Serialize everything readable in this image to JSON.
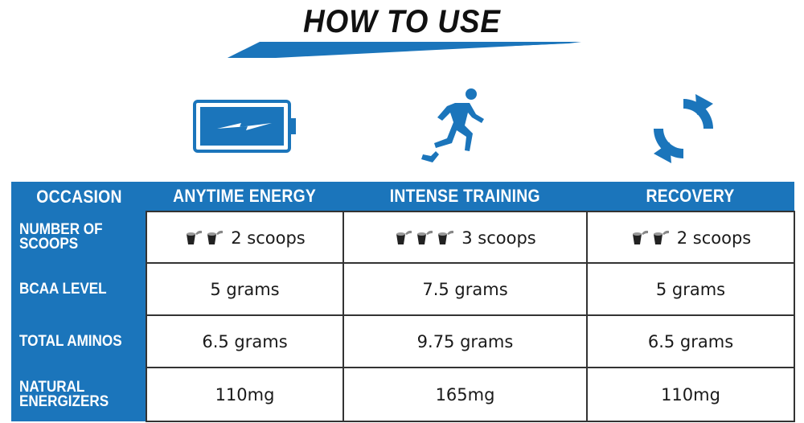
{
  "header": {
    "title": "HOW TO USE"
  },
  "icons": {
    "battery": "battery-charging-icon",
    "runner": "running-person-icon",
    "cycle": "recovery-cycle-icon",
    "scoop": "scoop-icon"
  },
  "colors": {
    "brand_blue": "#1b75bb",
    "text_dark": "#111111"
  },
  "table": {
    "headers": [
      "OCCASION",
      "ANYTIME ENERGY",
      "INTENSE TRAINING",
      "RECOVERY"
    ],
    "rows": [
      {
        "label_line1": "NUMBER OF",
        "label_line2": "SCOOPS",
        "values": [
          "2 scoops",
          "3 scoops",
          "2 scoops"
        ],
        "scoop_counts": [
          2,
          3,
          2
        ]
      },
      {
        "label_line1": "BCAA LEVEL",
        "label_line2": "",
        "values": [
          "5 grams",
          "7.5 grams",
          "5 grams"
        ]
      },
      {
        "label_line1": "TOTAL AMINOS",
        "label_line2": "",
        "values": [
          "6.5 grams",
          "9.75 grams",
          "6.5 grams"
        ]
      },
      {
        "label_line1": "NATURAL",
        "label_line2": "ENERGIZERS",
        "values": [
          "110mg",
          "165mg",
          "110mg"
        ]
      }
    ]
  }
}
